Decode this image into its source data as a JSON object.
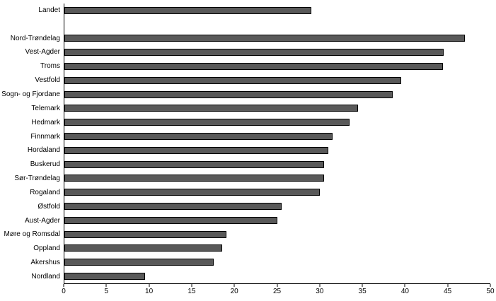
{
  "chart_data": {
    "type": "bar",
    "orientation": "horizontal",
    "title": "",
    "xlabel": "",
    "ylabel": "",
    "categories": [
      "Landet",
      "",
      "Nord-Trøndelag",
      "Vest-Agder",
      "Troms",
      "Vestfold",
      "Sogn- og Fjordane",
      "Telemark",
      "Hedmark",
      "Finnmark",
      "Hordaland",
      "Buskerud",
      "Sør-Trøndelag",
      "Rogaland",
      "Østfold",
      "Aust-Agder",
      "Møre og Romsdal",
      "Oppland",
      "Akershus",
      "Nordland"
    ],
    "values": [
      29,
      null,
      47,
      44.5,
      44.4,
      39.5,
      38.5,
      34.5,
      33.5,
      31.5,
      31,
      30.5,
      30.5,
      30,
      25.5,
      25,
      19,
      18.5,
      17.5,
      9.5
    ],
    "xlim": [
      0,
      50
    ],
    "xticks": [
      0,
      5,
      10,
      15,
      20,
      25,
      30,
      35,
      40,
      45,
      50
    ],
    "grid": "off",
    "legend": "none",
    "bar_color": "#595959",
    "bar_border_color": "#000000"
  }
}
